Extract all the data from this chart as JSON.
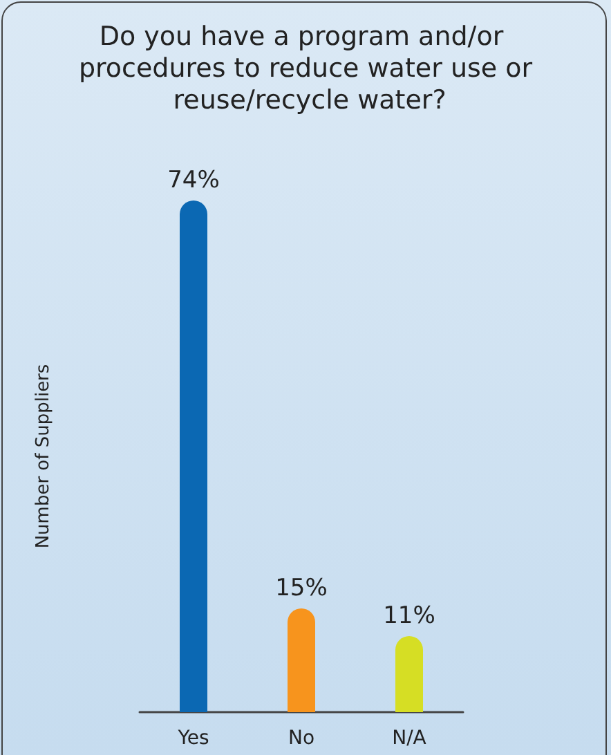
{
  "chart_data": {
    "type": "bar",
    "title": "Do you have a program and/or procedures to reduce water use or reuse/recycle water?",
    "ylabel": "Number of Suppliers",
    "categories": [
      "Yes",
      "No",
      "N/A"
    ],
    "values": [
      74,
      15,
      11
    ],
    "colors": [
      "#0b68b3",
      "#f7941d",
      "#d6de24"
    ],
    "value_labels": [
      "74%",
      "15%",
      "11%"
    ],
    "grid": false
  }
}
